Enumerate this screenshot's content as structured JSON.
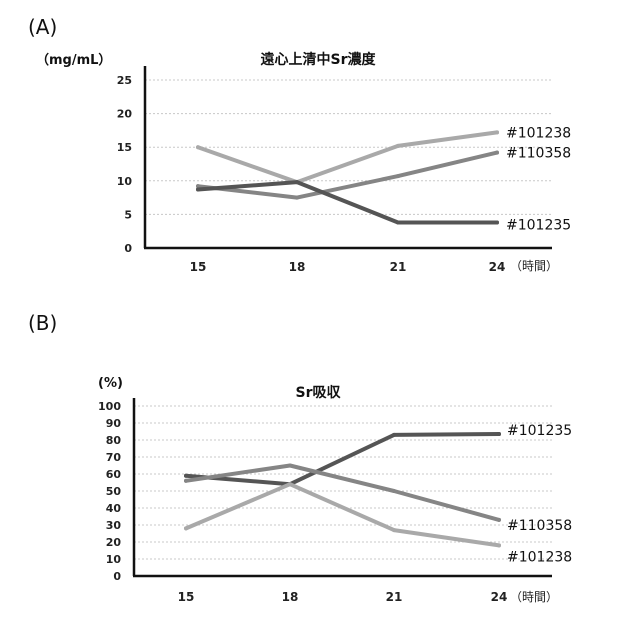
{
  "chart_data": [
    {
      "id": "A",
      "panel_label": "(A)",
      "type": "line",
      "title": "遠心上清中Sr濃度",
      "y_unit": "（mg/mL）",
      "x_unit": "（時間）",
      "categories": [
        "15",
        "18",
        "21",
        "24"
      ],
      "ylim": [
        0,
        25
      ],
      "yticks": [
        0,
        5,
        10,
        15,
        20,
        25
      ],
      "grid": true,
      "series": [
        {
          "name": "#101238",
          "color": "#a9a9a9",
          "values": [
            15,
            9.8,
            15.2,
            17.2
          ]
        },
        {
          "name": "#110358",
          "color": "#858585",
          "values": [
            9.2,
            7.5,
            10.7,
            14.2
          ]
        },
        {
          "name": "#101235",
          "color": "#555555",
          "values": [
            8.7,
            9.8,
            3.8,
            3.8
          ]
        }
      ]
    },
    {
      "id": "B",
      "panel_label": "(B)",
      "type": "line",
      "title": "Sr吸収",
      "y_unit": "(%)",
      "x_unit": "（時間）",
      "categories": [
        "15",
        "18",
        "21",
        "24"
      ],
      "ylim": [
        0,
        100
      ],
      "yticks": [
        0,
        10,
        20,
        30,
        40,
        50,
        60,
        70,
        80,
        90,
        100
      ],
      "grid": true,
      "series": [
        {
          "name": "#101235",
          "color": "#555555",
          "values": [
            59,
            54,
            83,
            83.5
          ]
        },
        {
          "name": "#110358",
          "color": "#858585",
          "values": [
            56,
            65,
            50,
            33
          ]
        },
        {
          "name": "#101238",
          "color": "#a9a9a9",
          "values": [
            28,
            54,
            27,
            18
          ]
        }
      ]
    }
  ]
}
